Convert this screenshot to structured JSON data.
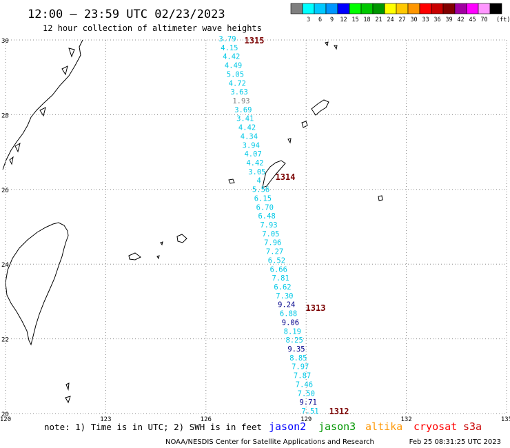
{
  "header": {
    "title": "12:00 — 23:59 UTC 02/23/2023",
    "subtitle": "12 hour collection of altimeter wave heights"
  },
  "legend": {
    "swatches": [
      {
        "color": "#7f7f7f",
        "label": ""
      },
      {
        "color": "#00ffff",
        "label": "3"
      },
      {
        "color": "#00c8ff",
        "label": "6"
      },
      {
        "color": "#0096ff",
        "label": "9"
      },
      {
        "color": "#0000ff",
        "label": "12"
      },
      {
        "color": "#00ff00",
        "label": "15"
      },
      {
        "color": "#00c800",
        "label": "18"
      },
      {
        "color": "#009600",
        "label": "21"
      },
      {
        "color": "#ffff00",
        "label": "24"
      },
      {
        "color": "#ffc800",
        "label": "27"
      },
      {
        "color": "#ff9600",
        "label": "30"
      },
      {
        "color": "#ff0000",
        "label": "33"
      },
      {
        "color": "#c80000",
        "label": "36"
      },
      {
        "color": "#800000",
        "label": "39"
      },
      {
        "color": "#a000a0",
        "label": "42"
      },
      {
        "color": "#ff00ff",
        "label": "45"
      },
      {
        "color": "#ff96ff",
        "label": "70"
      },
      {
        "color": "#000000",
        "label": ""
      }
    ],
    "unit": "(ft)"
  },
  "axes": {
    "lon_labels": [
      "120",
      "123",
      "126",
      "129",
      "132",
      "135"
    ],
    "lat_labels": [
      "30",
      "28",
      "26",
      "24",
      "22",
      "20"
    ]
  },
  "passes": [
    {
      "id": "1315",
      "color": "#7a0000"
    },
    {
      "id": "1314",
      "color": "#7a0000"
    },
    {
      "id": "1313",
      "color": "#7a0000"
    },
    {
      "id": "1312",
      "color": "#7a0000"
    }
  ],
  "track": {
    "cyan_color": "#00c8e6",
    "navy_color": "#00008b",
    "gray_color": "#7f7f7f",
    "points": [
      {
        "v": "3.79",
        "c": "cyan"
      },
      {
        "v": "4.15",
        "c": "cyan"
      },
      {
        "v": "4.42",
        "c": "cyan"
      },
      {
        "v": "4.49",
        "c": "cyan"
      },
      {
        "v": "5.05",
        "c": "cyan"
      },
      {
        "v": "4.72",
        "c": "cyan"
      },
      {
        "v": "3.63",
        "c": "cyan"
      },
      {
        "v": "1.93",
        "c": "gray"
      },
      {
        "v": "3.69",
        "c": "cyan"
      },
      {
        "v": "3.41",
        "c": "cyan"
      },
      {
        "v": "4.42",
        "c": "cyan"
      },
      {
        "v": "4.34",
        "c": "cyan"
      },
      {
        "v": "3.94",
        "c": "cyan"
      },
      {
        "v": "4.07",
        "c": "cyan"
      },
      {
        "v": "4.42",
        "c": "cyan"
      },
      {
        "v": "3.05",
        "c": "cyan"
      },
      {
        "v": "4",
        "c": "cyan"
      },
      {
        "v": "5.56",
        "c": "cyan"
      },
      {
        "v": "6.15",
        "c": "cyan"
      },
      {
        "v": "6.70",
        "c": "cyan"
      },
      {
        "v": "6.48",
        "c": "cyan"
      },
      {
        "v": "7.93",
        "c": "cyan"
      },
      {
        "v": "7.05",
        "c": "cyan"
      },
      {
        "v": "7.96",
        "c": "cyan"
      },
      {
        "v": "7.27",
        "c": "cyan"
      },
      {
        "v": "6.52",
        "c": "cyan"
      },
      {
        "v": "6.66",
        "c": "cyan"
      },
      {
        "v": "7.81",
        "c": "cyan"
      },
      {
        "v": "6.62",
        "c": "cyan"
      },
      {
        "v": "7.30",
        "c": "cyan"
      },
      {
        "v": "9.24",
        "c": "navy"
      },
      {
        "v": "6.88",
        "c": "cyan"
      },
      {
        "v": "9.06",
        "c": "navy"
      },
      {
        "v": "8.19",
        "c": "cyan"
      },
      {
        "v": "8.25",
        "c": "cyan"
      },
      {
        "v": "9.35",
        "c": "navy"
      },
      {
        "v": "8.85",
        "c": "cyan"
      },
      {
        "v": "7.97",
        "c": "cyan"
      },
      {
        "v": "7.87",
        "c": "cyan"
      },
      {
        "v": "7.46",
        "c": "cyan"
      },
      {
        "v": "7.50",
        "c": "cyan"
      },
      {
        "v": "9.71",
        "c": "navy"
      },
      {
        "v": "7.51",
        "c": "cyan"
      }
    ]
  },
  "footer": {
    "note": "note: 1) Time is in UTC; 2) SWH is in feet",
    "satellites": [
      {
        "name": "jason2",
        "color": "#0000ff"
      },
      {
        "name": "jason3",
        "color": "#009600"
      },
      {
        "name": "altika",
        "color": "#ff9600"
      },
      {
        "name": "cryosat",
        "color": "#ff0000"
      },
      {
        "name": "s3a",
        "color": "#c80000"
      }
    ],
    "credit": "NOAA/NESDIS Center for Satellite Applications and Research",
    "timestamp": "Feb 25 08:31:25 UTC 2023"
  }
}
